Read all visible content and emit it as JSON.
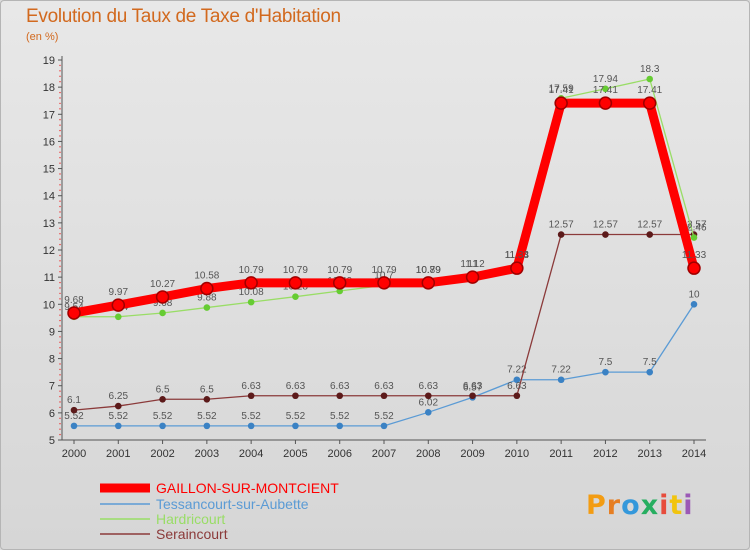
{
  "chart_data": {
    "type": "line",
    "title": "Evolution du Taux de Taxe d'Habitation",
    "subtitle": "(en %)",
    "x": [
      "2000",
      "2001",
      "2002",
      "2003",
      "2004",
      "2005",
      "2006",
      "2007",
      "2008",
      "2009",
      "2010",
      "2011",
      "2012",
      "2013",
      "2014"
    ],
    "ylim": [
      5,
      19
    ],
    "yticks": [
      5,
      6,
      7,
      8,
      9,
      10,
      11,
      12,
      13,
      14,
      15,
      16,
      17,
      18,
      19
    ],
    "grid": false,
    "legend_position": "bottom-left",
    "series": [
      {
        "name": "GAILLON-SUR-MONTCIENT",
        "color": "#ff0000",
        "marker": "#b30000",
        "values": [
          9.68,
          9.97,
          10.27,
          10.58,
          10.79,
          10.79,
          10.79,
          10.79,
          10.79,
          11,
          11.33,
          17.41,
          17.41,
          17.41,
          11.33
        ]
      },
      {
        "name": "Tessancourt-sur-Aubette",
        "color": "#5b9bd5",
        "marker": "#3b82c4",
        "values": [
          5.52,
          5.52,
          5.52,
          5.52,
          5.52,
          5.52,
          5.52,
          5.52,
          6.02,
          6.57,
          7.22,
          7.22,
          7.5,
          7.5,
          10
        ]
      },
      {
        "name": "Hardricourt",
        "color": "#99dd66",
        "marker": "#66cc33",
        "values": [
          9.54,
          9.54,
          9.68,
          9.88,
          10.08,
          10.28,
          10.49,
          10.7,
          10.89,
          11.12,
          11.44,
          17.59,
          17.94,
          18.3,
          12.46
        ]
      },
      {
        "name": "Seraincourt",
        "color": "#8b3a3a",
        "marker": "#5c1a1a",
        "values": [
          6.1,
          6.25,
          6.5,
          6.5,
          6.63,
          6.63,
          6.63,
          6.63,
          6.63,
          6.63,
          6.63,
          12.57,
          12.57,
          12.57,
          12.57
        ]
      }
    ]
  },
  "branding": {
    "logo_letters": [
      "P",
      "r",
      "o",
      "x",
      "i",
      "t",
      "i"
    ],
    "logo_colors": [
      "#f39c12",
      "#e67e22",
      "#3498db",
      "#27ae60",
      "#e74c3c",
      "#f1c40f",
      "#9b59b6"
    ]
  }
}
